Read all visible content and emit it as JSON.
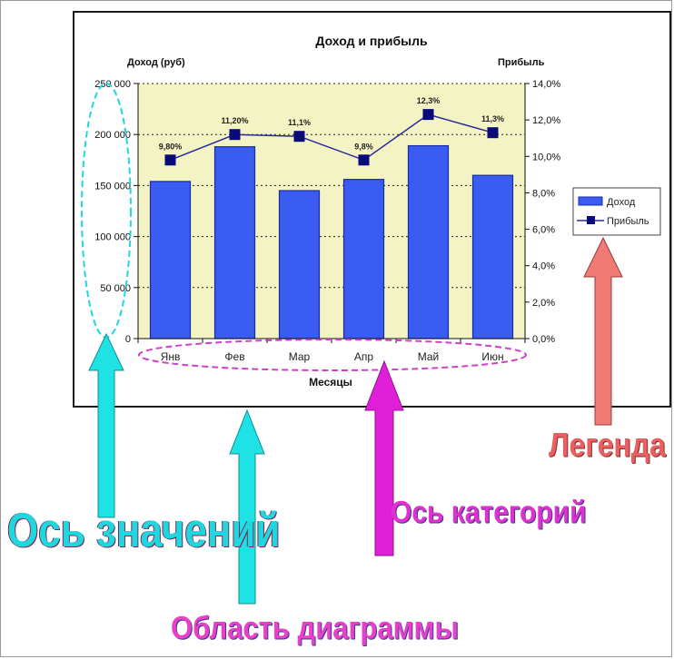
{
  "chart_data": {
    "type": "bar",
    "title": "Доход и прибыль",
    "xlabel": "Месяцы",
    "ylabel": "Доход (руб)",
    "y2label": "Прибыль",
    "categories": [
      "Янв",
      "Фев",
      "Мар",
      "Апр",
      "Май",
      "Июн"
    ],
    "series": [
      {
        "name": "Доход",
        "type": "bar",
        "axis": "left",
        "values": [
          154000,
          188000,
          145000,
          156000,
          189000,
          160000
        ]
      },
      {
        "name": "Прибыль",
        "type": "line",
        "axis": "right",
        "values": [
          9.8,
          11.2,
          11.1,
          9.8,
          12.3,
          11.3
        ],
        "data_labels": [
          "9,80%",
          "11,20%",
          "11,1%",
          "9,8%",
          "12,3%",
          "11,3%"
        ]
      }
    ],
    "ylim": [
      0,
      250000
    ],
    "y_ticks": [
      0,
      50000,
      100000,
      150000,
      200000,
      250000
    ],
    "y_tick_labels": [
      "0",
      "50 000",
      "100 000",
      "150 000",
      "200 000",
      "250 000"
    ],
    "y2lim": [
      0,
      14
    ],
    "y2_ticks": [
      0,
      2,
      4,
      6,
      8,
      10,
      12,
      14
    ],
    "y2_tick_labels": [
      "0,0%",
      "2,0%",
      "4,0%",
      "6,0%",
      "8,0%",
      "10,0%",
      "12,0%",
      "14,0%"
    ],
    "grid": true,
    "legend_position": "right",
    "colors": {
      "bar_fill": "#3a5cf0",
      "bar_edge": "#1a2ca0",
      "line": "#2a2a9c",
      "marker": "#0a0a78",
      "plot_bg": "#f4f3c4",
      "value_axis_callout": "#1fd8df",
      "plot_area_callout": "#1fd8df",
      "category_axis_callout": "#e020d8",
      "legend_callout": "#ee7670"
    }
  },
  "annotations": {
    "value_axis": "Ось значений",
    "plot_area": "Область диаграммы",
    "category_axis": "Ось категорий",
    "legend": "Легенда"
  }
}
